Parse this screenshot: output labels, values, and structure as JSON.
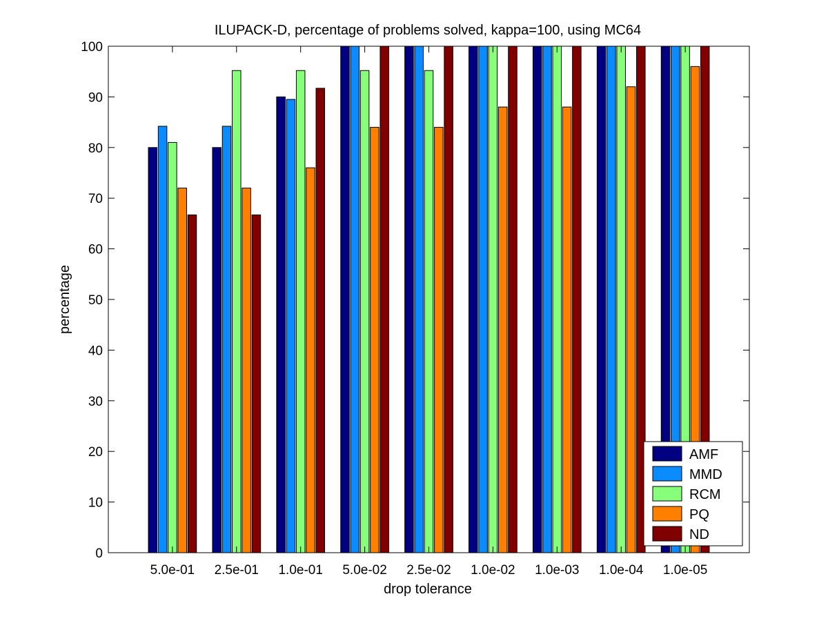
{
  "chart_data": {
    "type": "bar",
    "title": "ILUPACK-D, percentage of problems solved, kappa=100, using MC64",
    "xlabel": "drop tolerance",
    "ylabel": "percentage",
    "ylim": [
      0,
      100
    ],
    "yticks": [
      0,
      10,
      20,
      30,
      40,
      50,
      60,
      70,
      80,
      90,
      100
    ],
    "categories": [
      "5.0e-01",
      "2.5e-01",
      "1.0e-01",
      "5.0e-02",
      "2.5e-02",
      "1.0e-02",
      "1.0e-03",
      "1.0e-04",
      "1.0e-05"
    ],
    "grid": false,
    "legend_position": "bottom-right",
    "series": [
      {
        "name": "AMF",
        "color": "#000080",
        "values": [
          80,
          80,
          90,
          100,
          100,
          100,
          100,
          100,
          100
        ]
      },
      {
        "name": "MMD",
        "color": "#0a8cff",
        "values": [
          84.2,
          84.2,
          89.5,
          100,
          100,
          100,
          100,
          100,
          100
        ]
      },
      {
        "name": "RCM",
        "color": "#88ff7a",
        "values": [
          81,
          95.2,
          95.2,
          95.2,
          95.2,
          100,
          100,
          100,
          100
        ]
      },
      {
        "name": "PQ",
        "color": "#ff8000",
        "values": [
          72,
          72,
          76,
          84,
          84,
          88,
          88,
          92,
          96
        ]
      },
      {
        "name": "ND",
        "color": "#800000",
        "values": [
          66.7,
          66.7,
          91.7,
          100,
          100,
          100,
          100,
          100,
          100
        ]
      }
    ]
  }
}
